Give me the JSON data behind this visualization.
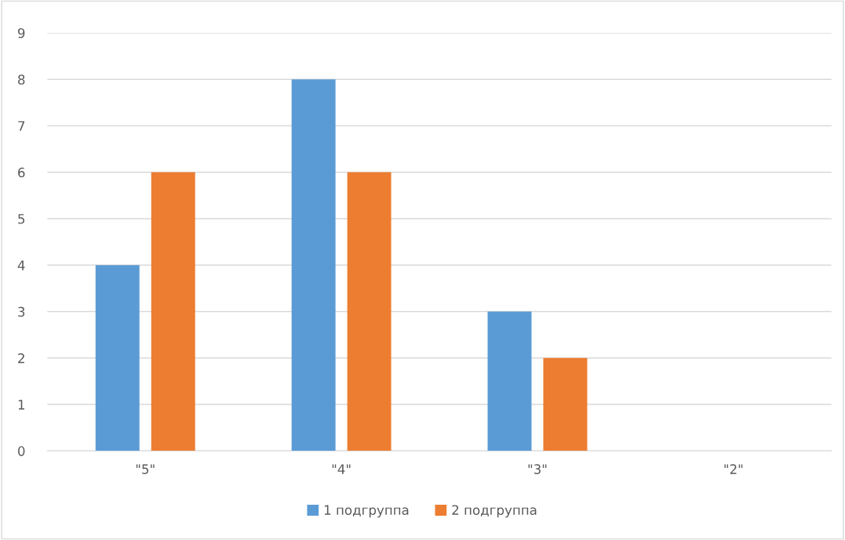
{
  "chart_data": {
    "type": "bar",
    "categories": [
      "\"5\"",
      "\"4\"",
      "\"3\"",
      "\"2\""
    ],
    "series": [
      {
        "name": "1 подгруппа",
        "color": "#5b9bd5",
        "values": [
          4,
          8,
          3,
          0
        ]
      },
      {
        "name": "2 подгруппа",
        "color": "#ed7d31",
        "values": [
          6,
          6,
          2,
          0
        ]
      }
    ],
    "ylim": [
      0,
      9
    ],
    "yticks": [
      0,
      1,
      2,
      3,
      4,
      5,
      6,
      7,
      8,
      9
    ],
    "grid": "y",
    "legend": "bottom"
  }
}
